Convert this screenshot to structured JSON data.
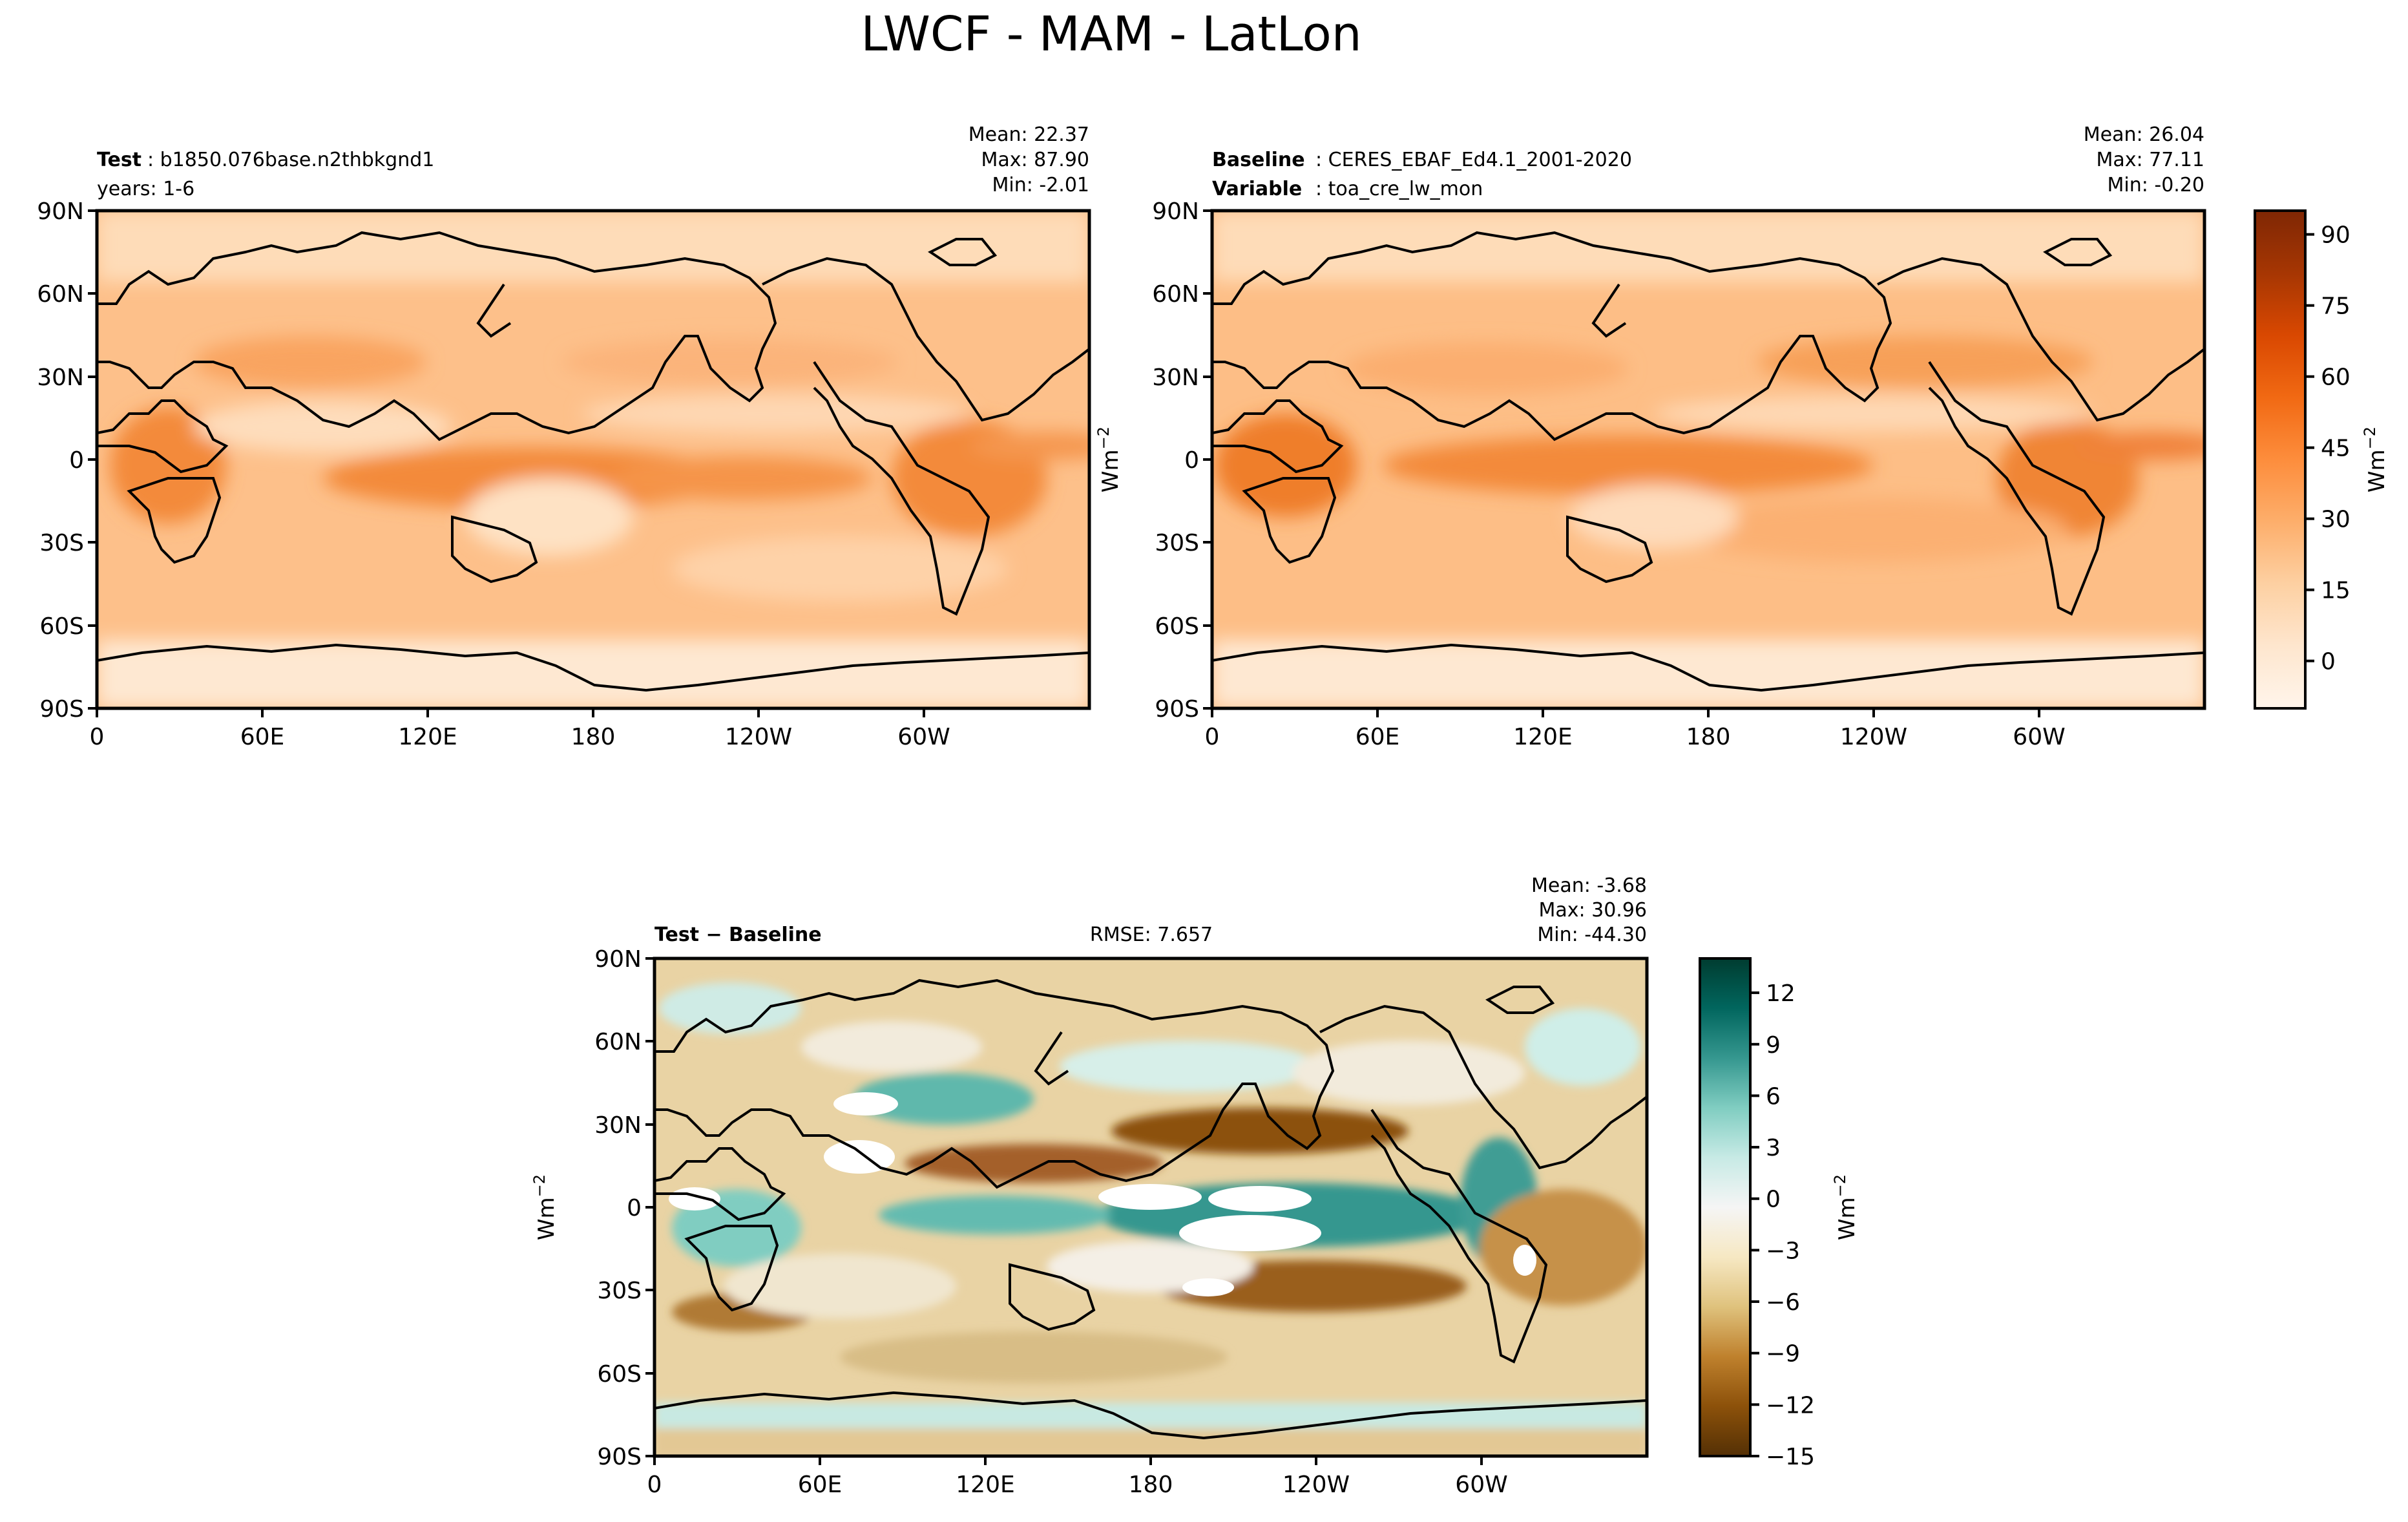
{
  "figure": {
    "title": "LWCF - MAM - LatLon"
  },
  "chart_data": [
    {
      "type": "heatmap",
      "panel": "test",
      "label_bold": "Test",
      "label_text": ": b1850.076base.n2thbkgnd1",
      "label_line2": "years: 1-6",
      "stats": [
        "Mean: 22.37",
        "Max: 87.90",
        "Min: -2.01"
      ],
      "mean": 22.37,
      "max": 87.9,
      "min": -2.01,
      "x_ticks": [
        "0",
        "60E",
        "120E",
        "180",
        "120W",
        "60W"
      ],
      "y_ticks": [
        "90N",
        "60N",
        "30N",
        "0",
        "30S",
        "60S",
        "90S"
      ],
      "xlim": [
        0,
        360
      ],
      "ylim": [
        -90,
        90
      ],
      "colormap": "Oranges",
      "grid": false
    },
    {
      "type": "heatmap",
      "panel": "baseline",
      "label_bold": "Baseline",
      "label_text": ": CERES_EBAF_Ed4.1_2001-2020",
      "label2_bold": "Variable",
      "label2_text": ": toa_cre_lw_mon",
      "stats": [
        "Mean: 26.04",
        "Max: 77.11",
        "Min: -0.20"
      ],
      "mean": 26.04,
      "max": 77.11,
      "min": -0.2,
      "x_ticks": [
        "0",
        "60E",
        "120E",
        "180",
        "120W",
        "60W"
      ],
      "y_ticks": [
        "90N",
        "60N",
        "30N",
        "0",
        "30S",
        "60S",
        "90S"
      ],
      "xlim": [
        0,
        360
      ],
      "ylim": [
        -90,
        90
      ],
      "colormap": "Oranges",
      "grid": false
    },
    {
      "type": "heatmap",
      "panel": "difference",
      "label_bold": "Test − Baseline",
      "rmse": "RMSE: 7.657",
      "stats": [
        "Mean: -3.68",
        "Max: 30.96",
        "Min: -44.30"
      ],
      "mean": -3.68,
      "max": 30.96,
      "min": -44.3,
      "x_ticks": [
        "0",
        "60E",
        "120E",
        "180",
        "120W",
        "60W"
      ],
      "y_ticks": [
        "90N",
        "60N",
        "30N",
        "0",
        "30S",
        "60S",
        "90S"
      ],
      "xlim": [
        0,
        360
      ],
      "ylim": [
        -90,
        90
      ],
      "colormap": "BrBG",
      "grid": false
    }
  ],
  "colorbars": {
    "top": {
      "ticks": [
        "90",
        "75",
        "60",
        "45",
        "30",
        "15",
        "0"
      ],
      "tick_values": [
        90,
        75,
        60,
        45,
        30,
        15,
        0
      ],
      "range": [
        -10,
        95
      ],
      "label": "Wm",
      "label_sup": "−2",
      "colors": [
        "#fff5eb",
        "#fee6ce",
        "#fdd0a2",
        "#fdae6b",
        "#fd8d3c",
        "#f16913",
        "#d94801",
        "#a63603",
        "#7f2704"
      ]
    },
    "bottom": {
      "ticks": [
        "12",
        "9",
        "6",
        "3",
        "0",
        "−3",
        "−6",
        "−9",
        "−12",
        "−15"
      ],
      "tick_values": [
        12,
        9,
        6,
        3,
        0,
        -3,
        -6,
        -9,
        -12,
        -15
      ],
      "range": [
        -15,
        14
      ],
      "label": "Wm",
      "label_sup": "−2",
      "colors": [
        "#543005",
        "#8c510a",
        "#bf812d",
        "#dfc27d",
        "#f6e8c3",
        "#f5f5f5",
        "#c7eae5",
        "#80cdc1",
        "#35978f",
        "#01665e",
        "#003c30"
      ]
    }
  },
  "side_labels": {
    "top_left_ylabel": "Wm",
    "bottom_ylabel": "Wm",
    "sup": "−2"
  }
}
